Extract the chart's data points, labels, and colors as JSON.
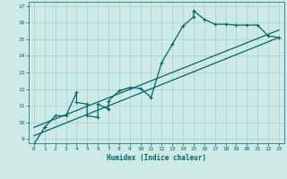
{
  "xlabel": "Humidex (Indice chaleur)",
  "bg_color": "#ceeae7",
  "grid_color": "#aed4d1",
  "line_color": "#006666",
  "xlim": [
    -0.5,
    23.5
  ],
  "ylim": [
    8.75,
    17.25
  ],
  "xticks": [
    0,
    1,
    2,
    3,
    4,
    5,
    6,
    7,
    8,
    9,
    10,
    11,
    12,
    13,
    14,
    15,
    16,
    17,
    18,
    19,
    20,
    21,
    22,
    23
  ],
  "yticks": [
    9,
    10,
    11,
    12,
    13,
    14,
    15,
    16,
    17
  ],
  "line1_x": [
    0,
    1,
    2,
    3,
    4,
    4,
    5,
    5,
    6,
    6,
    7,
    7,
    8,
    9,
    10,
    11,
    12,
    13,
    14,
    15,
    15,
    16,
    17,
    18,
    19,
    20,
    21,
    22,
    23
  ],
  "line1_y": [
    8.7,
    9.7,
    10.4,
    10.4,
    11.8,
    11.2,
    11.1,
    10.4,
    10.3,
    11.1,
    10.8,
    11.3,
    11.9,
    12.1,
    12.05,
    11.5,
    13.6,
    14.7,
    15.8,
    16.35,
    16.7,
    16.2,
    15.9,
    15.9,
    15.85,
    15.85,
    15.85,
    15.2,
    15.1
  ],
  "line2_x": [
    0,
    23
  ],
  "line2_y": [
    9.2,
    15.1
  ],
  "line3_x": [
    0,
    23
  ],
  "line3_y": [
    9.7,
    15.55
  ],
  "marker": "+"
}
